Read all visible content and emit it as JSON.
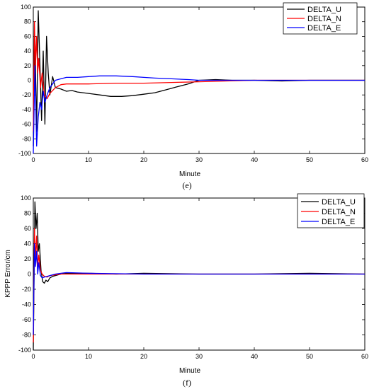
{
  "chart_data": [
    {
      "type": "line",
      "panel_caption": "(e)",
      "xlabel": "Minute",
      "ylabel": "",
      "xlim": [
        0,
        60
      ],
      "ylim": [
        -100,
        100
      ],
      "xticks": [
        0,
        10,
        20,
        30,
        40,
        50,
        60
      ],
      "yticks": [
        100,
        80,
        60,
        40,
        20,
        0,
        -20,
        -40,
        -60,
        -80,
        -100
      ],
      "legend_position": "top-right",
      "series": [
        {
          "name": "DELTA_U",
          "color": "#000000",
          "x": [
            0,
            0.3,
            0.6,
            0.9,
            1.2,
            1.5,
            1.8,
            2.1,
            2.4,
            2.7,
            3,
            3.5,
            4,
            5,
            6,
            7,
            8,
            10,
            12,
            14,
            16,
            18,
            20,
            22,
            24,
            26,
            28,
            30,
            33,
            36,
            40,
            45,
            50,
            55,
            60
          ],
          "y": [
            -90,
            60,
            -70,
            95,
            20,
            -55,
            40,
            -60,
            60,
            10,
            -20,
            5,
            -10,
            -12,
            -15,
            -14,
            -16,
            -18,
            -20,
            -22,
            -22,
            -21,
            -19,
            -17,
            -13,
            -9,
            -5,
            0,
            1,
            0,
            0,
            -1,
            0,
            0,
            0
          ]
        },
        {
          "name": "DELTA_N",
          "color": "#ff0000",
          "x": [
            0,
            0.2,
            0.4,
            0.6,
            0.8,
            1,
            1.3,
            1.6,
            2,
            2.5,
            3,
            4,
            5,
            6,
            8,
            10,
            15,
            20,
            25,
            30,
            35,
            40,
            45,
            50,
            55,
            60
          ],
          "y": [
            -70,
            80,
            20,
            60,
            10,
            30,
            -10,
            10,
            -20,
            -25,
            -18,
            -10,
            -6,
            -5,
            -5,
            -5,
            -4,
            -4,
            -3,
            -2,
            -1,
            0,
            0,
            0,
            0,
            0
          ]
        },
        {
          "name": "DELTA_E",
          "color": "#0000ff",
          "x": [
            0,
            0.3,
            0.6,
            0.9,
            1.2,
            1.5,
            1.8,
            2.1,
            2.5,
            3,
            3.5,
            4,
            5,
            6,
            8,
            10,
            12,
            15,
            18,
            20,
            22,
            25,
            28,
            30,
            35,
            40,
            50,
            60
          ],
          "y": [
            -100,
            20,
            -90,
            -50,
            -30,
            -40,
            -15,
            -30,
            -20,
            -10,
            -5,
            0,
            2,
            4,
            4,
            5,
            6,
            6,
            5,
            4,
            3,
            2,
            1,
            0,
            0,
            0,
            0,
            0
          ]
        }
      ]
    },
    {
      "type": "line",
      "panel_caption": "(f)",
      "xlabel": "Minute",
      "ylabel": "KPPP Error/cm",
      "xlim": [
        0,
        60
      ],
      "ylim": [
        -100,
        100
      ],
      "xticks": [
        0,
        10,
        20,
        30,
        40,
        50,
        60
      ],
      "yticks": [
        100,
        80,
        60,
        40,
        20,
        0,
        -20,
        -40,
        -60,
        -80,
        -100
      ],
      "legend_position": "top-right",
      "series": [
        {
          "name": "DELTA_U",
          "color": "#000000",
          "x": [
            0,
            0.3,
            0.5,
            0.7,
            0.9,
            1.1,
            1.4,
            1.7,
            2,
            2.3,
            2.6,
            3,
            3.5,
            4,
            5,
            6,
            8,
            10,
            15,
            20,
            30,
            40,
            50,
            60
          ],
          "y": [
            -100,
            95,
            60,
            80,
            30,
            40,
            5,
            -10,
            -12,
            -8,
            -10,
            -5,
            -3,
            -2,
            0,
            1,
            1,
            1,
            0,
            1,
            0,
            0,
            1,
            0
          ]
        },
        {
          "name": "DELTA_N",
          "color": "#ff0000",
          "x": [
            0,
            0.2,
            0.4,
            0.6,
            0.8,
            1,
            1.3,
            1.6,
            2,
            2.5,
            3,
            4,
            5,
            6,
            10,
            20,
            30,
            40,
            50,
            60
          ],
          "y": [
            -90,
            60,
            20,
            50,
            10,
            25,
            5,
            0,
            -3,
            -4,
            -2,
            -1,
            0,
            0,
            0,
            0,
            0,
            0,
            0,
            0
          ]
        },
        {
          "name": "DELTA_E",
          "color": "#0000ff",
          "x": [
            0,
            0.2,
            0.4,
            0.6,
            0.8,
            1,
            1.3,
            1.6,
            2,
            2.5,
            3,
            4,
            5,
            6,
            10,
            20,
            30,
            40,
            50,
            60
          ],
          "y": [
            -80,
            40,
            10,
            30,
            0,
            15,
            -2,
            -5,
            -4,
            -3,
            -2,
            0,
            1,
            2,
            1,
            0,
            0,
            0,
            0,
            0
          ]
        }
      ]
    }
  ]
}
